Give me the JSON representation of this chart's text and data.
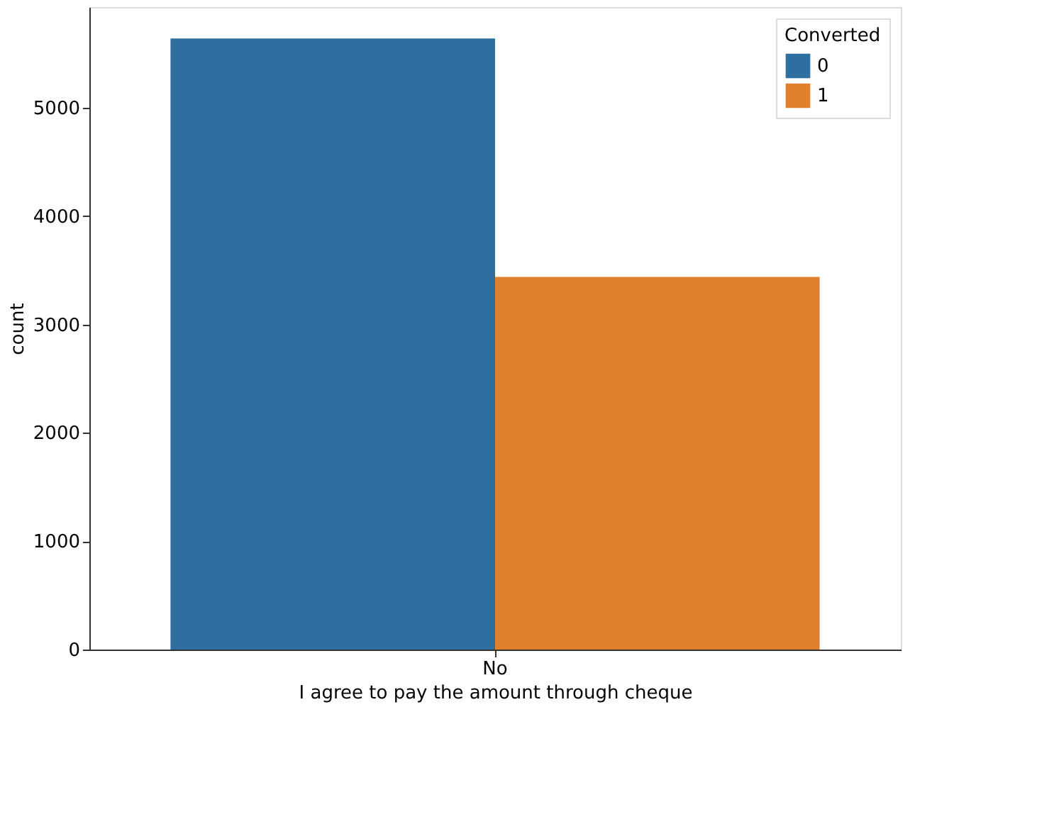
{
  "chart_data": {
    "type": "bar",
    "xlabel": "I agree to pay the amount through cheque",
    "ylabel": "count",
    "legend_title": "Converted",
    "categories": [
      "No"
    ],
    "series": [
      {
        "name": "0",
        "color": "#2f6f9f",
        "values": [
          5640
        ]
      },
      {
        "name": "1",
        "color": "#e07f2c",
        "values": [
          3440
        ]
      }
    ],
    "ylim": [
      0,
      5930
    ],
    "yticks": [
      0,
      1000,
      2000,
      3000,
      4000,
      5000
    ],
    "grid": false,
    "legend": "top right"
  }
}
